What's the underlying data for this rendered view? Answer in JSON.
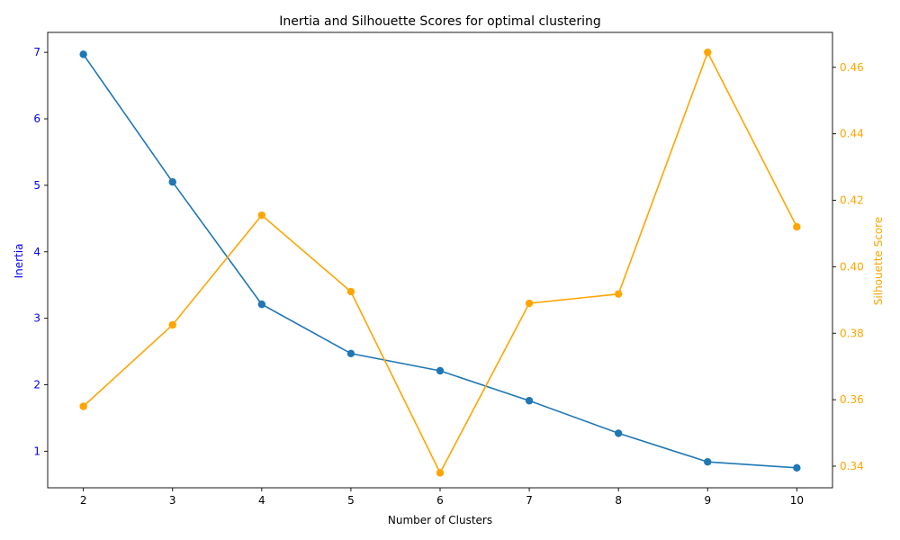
{
  "chart_data": {
    "type": "line",
    "title": "Inertia and Silhouette Scores for optimal clustering",
    "xlabel": "Number of Clusters",
    "x": [
      2,
      3,
      4,
      5,
      6,
      7,
      8,
      9,
      10
    ],
    "xlim": [
      1.6,
      10.4
    ],
    "grid": false,
    "left_axis": {
      "label": "Inertia",
      "color": "#0000ff",
      "ylim": [
        0.45,
        7.3
      ],
      "ticks": [
        1,
        2,
        3,
        4,
        5,
        6,
        7
      ],
      "tick_labels": [
        "1",
        "2",
        "3",
        "4",
        "5",
        "6",
        "7"
      ]
    },
    "right_axis": {
      "label": "Silhouette Score",
      "color": "#ffa500",
      "ylim": [
        0.3335,
        0.4705
      ],
      "ticks": [
        0.34,
        0.36,
        0.38,
        0.4,
        0.42,
        0.44,
        0.46
      ],
      "tick_labels": [
        "0.34",
        "0.36",
        "0.38",
        "0.40",
        "0.42",
        "0.44",
        "0.46"
      ]
    },
    "series": [
      {
        "axis": "left",
        "color": "#1f77b4",
        "values": [
          6.97,
          5.05,
          3.21,
          2.47,
          2.21,
          1.76,
          1.27,
          0.84,
          0.75
        ]
      },
      {
        "axis": "right",
        "color": "#ffa500",
        "values": [
          0.358,
          0.3825,
          0.4155,
          0.3925,
          0.338,
          0.389,
          0.3918,
          0.4645,
          0.412
        ]
      }
    ]
  }
}
